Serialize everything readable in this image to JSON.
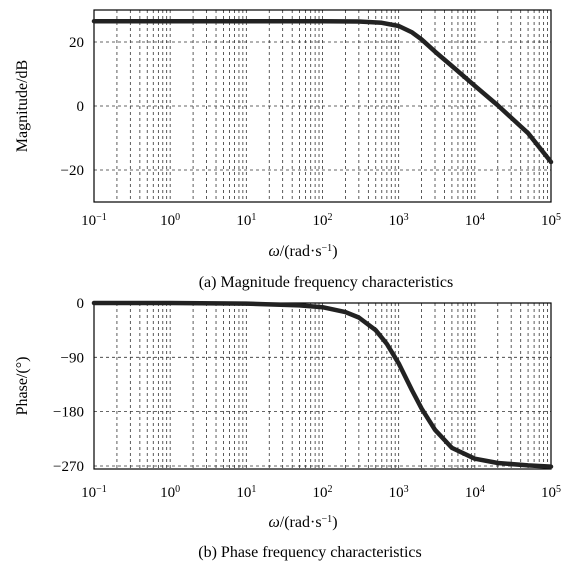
{
  "chart_data": [
    {
      "type": "line",
      "panel": "magnitude",
      "caption": "(a) Magnitude frequency characteristics",
      "xlabel_omega": "ω",
      "xlabel_unit": "/(rad·s",
      "xlabel_exp": "−1",
      "xlabel_close": ")",
      "ylabel": "Magnitude/dB",
      "x_scale": "log",
      "xlim": [
        0.1,
        100000
      ],
      "ylim": [
        -30,
        30
      ],
      "y_ticks": [
        20,
        0,
        -20
      ],
      "y_tick_labels": [
        "20",
        "0",
        "−20"
      ],
      "x_ticks": [
        {
          "base": "10",
          "exp": "−1"
        },
        {
          "base": "10",
          "exp": "0"
        },
        {
          "base": "10",
          "exp": "1"
        },
        {
          "base": "10",
          "exp": "2"
        },
        {
          "base": "10",
          "exp": "3"
        },
        {
          "base": "10",
          "exp": "4"
        },
        {
          "base": "10",
          "exp": "5"
        }
      ],
      "grid": true,
      "series": [
        {
          "x": [
            0.1,
            1,
            10,
            100,
            300,
            600,
            1000,
            1500,
            2000,
            3000,
            5000,
            10000,
            20000,
            50000,
            100000
          ],
          "y": [
            26.5,
            26.5,
            26.5,
            26.5,
            26.4,
            26.0,
            25.0,
            23.0,
            20.8,
            17.0,
            12.5,
            6.3,
            0.2,
            -8.5,
            -17.5
          ]
        }
      ]
    },
    {
      "type": "line",
      "panel": "phase",
      "caption": "(b) Phase frequency characteristics",
      "xlabel_omega": "ω",
      "xlabel_unit": "/(rad·s",
      "xlabel_exp": "−1",
      "xlabel_close": ")",
      "ylabel": "Phase/(°)",
      "x_scale": "log",
      "xlim": [
        0.1,
        100000
      ],
      "ylim": [
        -275,
        0
      ],
      "y_ticks": [
        0,
        -90,
        -180,
        -270
      ],
      "y_tick_labels": [
        "0",
        "−90",
        "−180",
        "−270"
      ],
      "x_ticks": [
        {
          "base": "10",
          "exp": "−1"
        },
        {
          "base": "10",
          "exp": "0"
        },
        {
          "base": "10",
          "exp": "1"
        },
        {
          "base": "10",
          "exp": "2"
        },
        {
          "base": "10",
          "exp": "3"
        },
        {
          "base": "10",
          "exp": "4"
        },
        {
          "base": "10",
          "exp": "5"
        }
      ],
      "grid": true,
      "series": [
        {
          "x": [
            0.1,
            1,
            10,
            50,
            100,
            200,
            300,
            500,
            700,
            1000,
            1500,
            2000,
            3000,
            5000,
            10000,
            20000,
            50000,
            100000
          ],
          "y": [
            0,
            0,
            -1,
            -4,
            -7,
            -15,
            -24,
            -45,
            -68,
            -100,
            -145,
            -175,
            -210,
            -240,
            -258,
            -265,
            -269,
            -271
          ]
        }
      ]
    }
  ]
}
